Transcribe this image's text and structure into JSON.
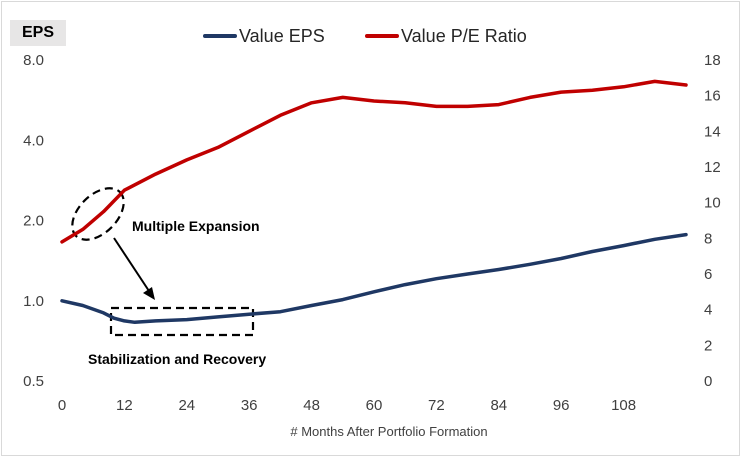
{
  "chart_data": {
    "type": "line",
    "y_axis_label": "EPS",
    "xlabel": "# Months After Portfolio Formation",
    "x_ticks": [
      0,
      12,
      24,
      36,
      48,
      60,
      72,
      84,
      96,
      108
    ],
    "xlim": [
      0,
      120
    ],
    "y_left_ticks": [
      {
        "value": 0.5,
        "label": "0.5"
      },
      {
        "value": 1.0,
        "label": "1.0"
      },
      {
        "value": 2.0,
        "label": "2.0"
      },
      {
        "value": 4.0,
        "label": "4.0"
      },
      {
        "value": 8.0,
        "label": "8.0"
      }
    ],
    "y_left_scale": "log2",
    "y_left_lim": [
      0.5,
      8.0
    ],
    "y_right_ticks": [
      0,
      2,
      4,
      6,
      8,
      10,
      12,
      14,
      16,
      18
    ],
    "y_right_lim": [
      0,
      18
    ],
    "grid": false,
    "legend_position": "top",
    "series": [
      {
        "name": "Value EPS",
        "color": "#1f3864",
        "axis": "left",
        "points": [
          [
            0,
            1.0
          ],
          [
            4,
            0.96
          ],
          [
            8,
            0.9
          ],
          [
            10,
            0.86
          ],
          [
            12,
            0.84
          ],
          [
            14,
            0.83
          ],
          [
            18,
            0.84
          ],
          [
            24,
            0.85
          ],
          [
            30,
            0.87
          ],
          [
            36,
            0.89
          ],
          [
            42,
            0.91
          ],
          [
            48,
            0.96
          ],
          [
            54,
            1.01
          ],
          [
            60,
            1.08
          ],
          [
            66,
            1.15
          ],
          [
            72,
            1.21
          ],
          [
            78,
            1.26
          ],
          [
            84,
            1.31
          ],
          [
            90,
            1.37
          ],
          [
            96,
            1.44
          ],
          [
            102,
            1.53
          ],
          [
            108,
            1.61
          ],
          [
            114,
            1.7
          ],
          [
            120,
            1.77
          ]
        ]
      },
      {
        "name": "Value P/E Ratio",
        "color": "#c00000",
        "axis": "right",
        "points": [
          [
            0,
            7.8
          ],
          [
            4,
            8.5
          ],
          [
            8,
            9.5
          ],
          [
            12,
            10.7
          ],
          [
            18,
            11.6
          ],
          [
            24,
            12.4
          ],
          [
            30,
            13.1
          ],
          [
            36,
            14.0
          ],
          [
            42,
            14.9
          ],
          [
            48,
            15.6
          ],
          [
            54,
            15.9
          ],
          [
            60,
            15.7
          ],
          [
            66,
            15.6
          ],
          [
            72,
            15.4
          ],
          [
            78,
            15.4
          ],
          [
            84,
            15.5
          ],
          [
            90,
            15.9
          ],
          [
            96,
            16.2
          ],
          [
            102,
            16.3
          ],
          [
            108,
            16.5
          ],
          [
            114,
            16.8
          ],
          [
            120,
            16.6
          ]
        ]
      }
    ],
    "annotations": [
      {
        "text": "Multiple Expansion"
      },
      {
        "text": "Stabilization and Recovery"
      }
    ]
  }
}
